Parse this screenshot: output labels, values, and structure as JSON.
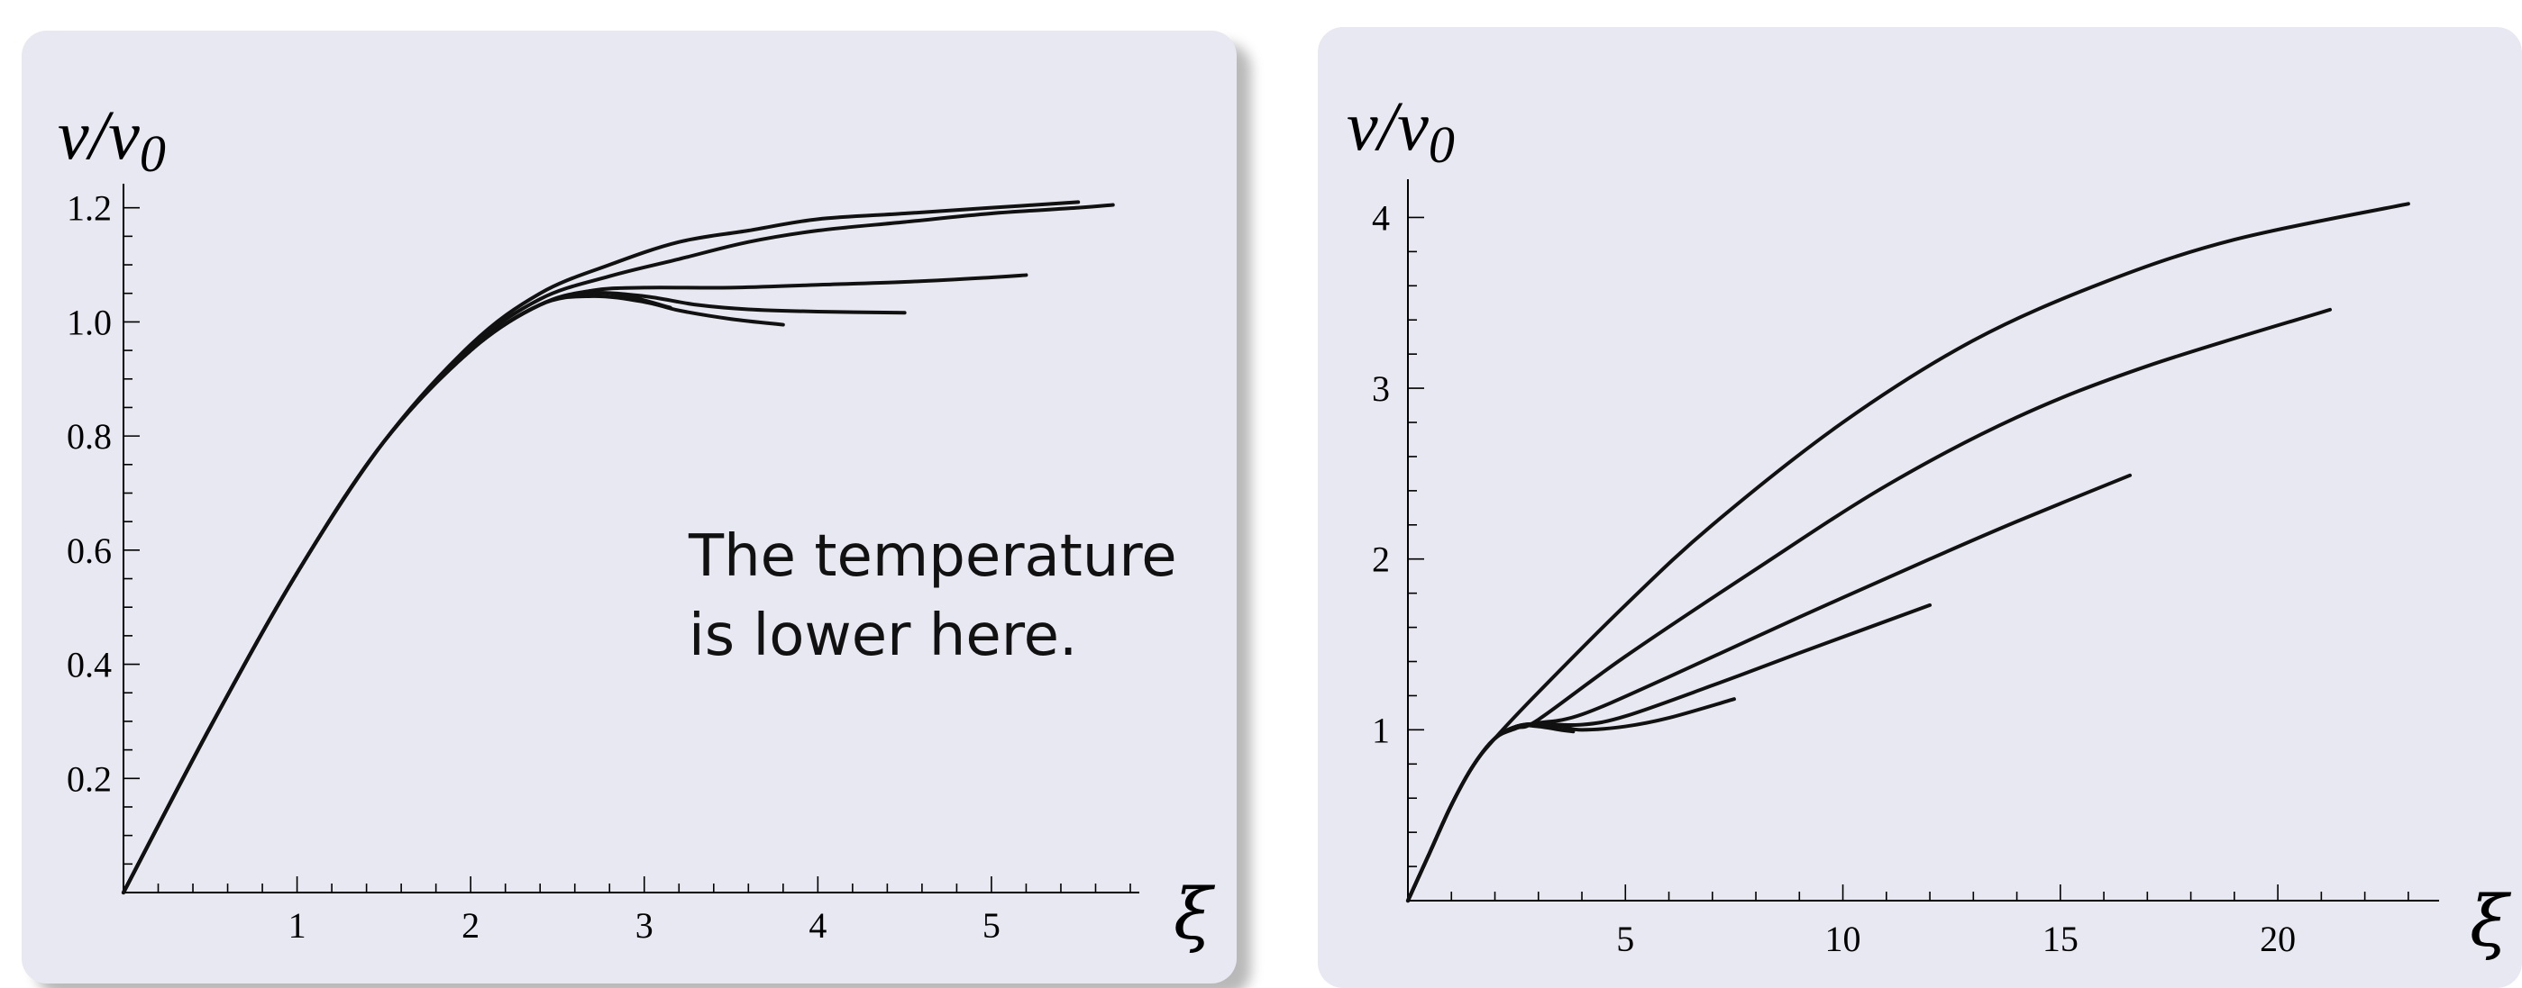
{
  "annotation": {
    "lines": [
      "The temperature",
      "is lower here."
    ]
  },
  "chart_data": [
    {
      "type": "line",
      "title": "",
      "ylabel": "v/v",
      "ylabel_subscript": "0",
      "xlabel": "ξ",
      "xlim": [
        0,
        5.8
      ],
      "ylim": [
        0,
        1.22
      ],
      "x_ticks": [
        1,
        2,
        3,
        4,
        5
      ],
      "y_ticks": [
        0.2,
        0.4,
        0.6,
        0.8,
        1.0,
        1.2
      ],
      "y_tick_labels": [
        "0.2",
        "0.4",
        "0.6",
        "0.8",
        "1.0",
        "1.2"
      ],
      "x_minor_step": 0.2,
      "y_minor_step": 0.05,
      "grid": false,
      "series": [
        {
          "x": [
            0,
            0.5,
            1.0,
            1.5,
            2.0,
            2.4,
            2.8,
            3.2,
            3.6,
            4.0,
            4.5,
            5.0,
            5.5
          ],
          "y": [
            0,
            0.29,
            0.56,
            0.79,
            0.96,
            1.05,
            1.1,
            1.14,
            1.16,
            1.18,
            1.19,
            1.2,
            1.21
          ]
        },
        {
          "x": [
            0,
            0.5,
            1.0,
            1.5,
            2.0,
            2.4,
            2.8,
            3.2,
            3.6,
            4.0,
            4.5,
            5.0,
            5.5,
            5.7
          ],
          "y": [
            0,
            0.29,
            0.56,
            0.79,
            0.955,
            1.04,
            1.08,
            1.11,
            1.14,
            1.16,
            1.175,
            1.19,
            1.2,
            1.205
          ]
        },
        {
          "x": [
            0,
            0.5,
            1.0,
            1.5,
            2.0,
            2.4,
            2.7,
            3.0,
            3.5,
            4.0,
            4.5,
            5.0,
            5.2
          ],
          "y": [
            0,
            0.29,
            0.56,
            0.79,
            0.95,
            1.03,
            1.055,
            1.06,
            1.06,
            1.065,
            1.07,
            1.078,
            1.082
          ]
        },
        {
          "x": [
            0,
            0.5,
            1.0,
            1.5,
            2.0,
            2.4,
            2.7,
            3.0,
            3.3,
            3.6,
            4.0,
            4.5
          ],
          "y": [
            0,
            0.29,
            0.56,
            0.79,
            0.95,
            1.03,
            1.05,
            1.045,
            1.03,
            1.022,
            1.018,
            1.016
          ]
        },
        {
          "x": [
            0,
            0.5,
            1.0,
            1.5,
            2.0,
            2.4,
            2.7,
            3.0,
            3.2,
            3.5,
            3.8
          ],
          "y": [
            0,
            0.29,
            0.56,
            0.79,
            0.95,
            1.03,
            1.045,
            1.035,
            1.02,
            1.005,
            0.995
          ]
        },
        {
          "x": [
            0,
            0.5,
            1.0,
            1.5,
            2.0,
            2.4,
            2.7,
            2.9,
            3.15
          ],
          "y": [
            0,
            0.29,
            0.56,
            0.79,
            0.95,
            1.03,
            1.05,
            1.045,
            1.025
          ]
        }
      ]
    },
    {
      "type": "line",
      "title": "",
      "ylabel": "v/v",
      "ylabel_subscript": "0",
      "xlabel": "ξ",
      "xlim": [
        0,
        23.5
      ],
      "ylim": [
        0,
        4.15
      ],
      "x_ticks": [
        5,
        10,
        15,
        20
      ],
      "y_ticks": [
        1,
        2,
        3,
        4
      ],
      "y_tick_labels": [
        "1",
        "2",
        "3",
        "4"
      ],
      "x_minor_step": 1,
      "y_minor_step": 0.2,
      "grid": false,
      "series": [
        {
          "x": [
            0,
            0.5,
            1.0,
            1.5,
            2.0,
            3.0,
            5.0,
            7.0,
            10.0,
            13.0,
            16.0,
            19.0,
            23.0
          ],
          "y": [
            0,
            0.28,
            0.56,
            0.79,
            0.95,
            1.22,
            1.73,
            2.2,
            2.8,
            3.28,
            3.62,
            3.87,
            4.08
          ]
        },
        {
          "x": [
            0,
            0.5,
            1.0,
            1.5,
            2.0,
            2.5,
            3.0,
            5.0,
            8.0,
            11.0,
            14.0,
            17.0,
            21.2
          ],
          "y": [
            0,
            0.28,
            0.56,
            0.79,
            0.95,
            1.01,
            1.06,
            1.43,
            1.94,
            2.43,
            2.83,
            3.13,
            3.46
          ]
        },
        {
          "x": [
            0,
            0.5,
            1.0,
            1.5,
            2.0,
            2.5,
            3.0,
            4.0,
            6.0,
            9.0,
            12.0,
            14.0,
            16.6
          ],
          "y": [
            0,
            0.28,
            0.56,
            0.79,
            0.95,
            1.02,
            1.04,
            1.09,
            1.31,
            1.66,
            2.0,
            2.22,
            2.49
          ]
        },
        {
          "x": [
            0,
            0.5,
            1.0,
            1.5,
            2.0,
            2.5,
            3.0,
            4.0,
            5.0,
            7.0,
            9.0,
            12.0
          ],
          "y": [
            0,
            0.28,
            0.56,
            0.79,
            0.95,
            1.02,
            1.035,
            1.03,
            1.08,
            1.26,
            1.45,
            1.73
          ]
        },
        {
          "x": [
            0,
            0.5,
            1.0,
            1.5,
            2.0,
            2.5,
            3.0,
            3.5,
            4.0,
            5.0,
            6.0,
            7.5
          ],
          "y": [
            0,
            0.28,
            0.56,
            0.79,
            0.95,
            1.02,
            1.03,
            1.02,
            1.0,
            1.02,
            1.07,
            1.18
          ]
        },
        {
          "x": [
            0,
            0.5,
            1.0,
            1.5,
            2.0,
            2.5,
            3.0,
            3.5,
            3.8
          ],
          "y": [
            0,
            0.28,
            0.56,
            0.79,
            0.95,
            1.02,
            1.02,
            1.0,
            0.99
          ]
        }
      ]
    }
  ]
}
